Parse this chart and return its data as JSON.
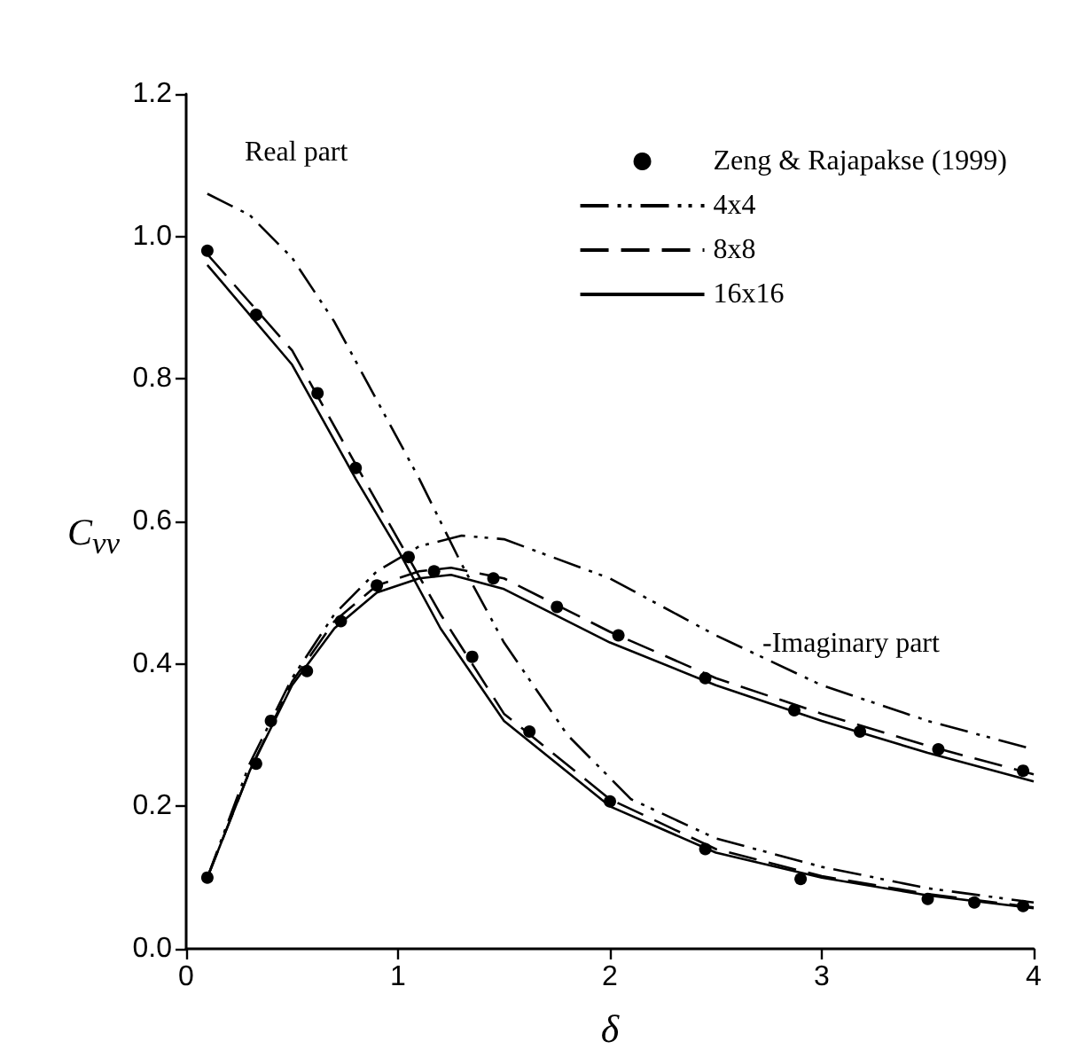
{
  "chart_data": {
    "type": "line",
    "xlabel": "δ",
    "ylabel": "C$_{vv}$",
    "xlim": [
      0,
      4
    ],
    "xticks": [
      0,
      1,
      2,
      3,
      4
    ],
    "ylim": [
      0,
      1.2
    ],
    "yticks": [
      {
        "value": 0,
        "label": "0.0"
      },
      {
        "value": 0.2,
        "label": "0.2"
      },
      {
        "value": 0.4,
        "label": "0.4"
      },
      {
        "value": 0.6,
        "label": "0.6"
      },
      {
        "value": 0.8,
        "label": "0.8"
      },
      {
        "value": 1,
        "label": "1.0"
      },
      {
        "value": 1.2,
        "label": "1.2"
      }
    ],
    "grid": false,
    "legend": "top right",
    "annotations": [
      "Real part",
      "-Imaginary part"
    ],
    "series": [
      {
        "name": "Zeng & Rajapakse (1999)",
        "type": "scatter",
        "marker": "circle",
        "color": "#000000",
        "x": [
          0.1,
          0.33,
          0.62,
          0.8,
          1.05,
          1.35,
          1.62,
          2.0,
          2.45,
          2.9,
          3.5,
          3.72,
          3.95,
          0.1,
          0.33,
          0.4,
          0.57,
          0.73,
          0.9,
          1.17,
          1.45,
          1.75,
          2.04,
          2.45,
          2.87,
          3.18,
          3.55,
          3.95
        ],
        "values": [
          0.98,
          0.89,
          0.78,
          0.675,
          0.55,
          0.41,
          0.305,
          0.207,
          0.14,
          0.098,
          0.07,
          0.065,
          0.06,
          0.1,
          0.26,
          0.32,
          0.39,
          0.46,
          0.51,
          0.53,
          0.52,
          0.48,
          0.44,
          0.38,
          0.335,
          0.305,
          0.28,
          0.25
        ]
      },
      {
        "name": "4x4",
        "type": "line",
        "line_style": "dotted",
        "color": "#000000",
        "x": [
          0.1,
          0.3,
          0.5,
          0.7,
          0.9,
          1.1,
          1.3,
          1.5,
          1.8,
          2.1,
          2.5,
          3,
          3.5,
          4,
          null,
          0.1,
          0.3,
          0.5,
          0.7,
          0.9,
          1.1,
          1.3,
          1.5,
          2,
          2.5,
          3,
          3.5,
          4
        ],
        "values": [
          1.06,
          1.03,
          0.97,
          0.88,
          0.77,
          0.66,
          0.54,
          0.43,
          0.3,
          0.21,
          0.155,
          0.115,
          0.085,
          0.065,
          null,
          0.1,
          0.26,
          0.38,
          0.47,
          0.53,
          0.565,
          0.58,
          0.575,
          0.52,
          0.44,
          0.37,
          0.32,
          0.28
        ]
      },
      {
        "name": "8x8",
        "type": "line",
        "line_style": "dashed",
        "color": "#000000",
        "x": [
          0.1,
          0.5,
          0.8,
          1.0,
          1.2,
          1.5,
          2,
          2.5,
          3,
          3.5,
          4,
          null,
          0.1,
          0.3,
          0.5,
          0.7,
          0.9,
          1.1,
          1.25,
          1.5,
          2,
          2.5,
          3,
          3.5,
          4
        ],
        "values": [
          0.975,
          0.84,
          0.68,
          0.575,
          0.47,
          0.33,
          0.21,
          0.14,
          0.102,
          0.077,
          0.058,
          null,
          0.1,
          0.25,
          0.375,
          0.46,
          0.51,
          0.53,
          0.535,
          0.52,
          0.445,
          0.38,
          0.33,
          0.285,
          0.245
        ]
      },
      {
        "name": "16x16",
        "type": "line",
        "line_style": "solid",
        "color": "#000000",
        "x": [
          0.1,
          0.5,
          0.8,
          1.0,
          1.2,
          1.5,
          2,
          2.5,
          3,
          3.5,
          4,
          null,
          0.1,
          0.3,
          0.5,
          0.7,
          0.9,
          1.1,
          1.25,
          1.5,
          2,
          2.5,
          3,
          3.5,
          4
        ],
        "values": [
          0.96,
          0.82,
          0.66,
          0.56,
          0.45,
          0.32,
          0.2,
          0.135,
          0.1,
          0.075,
          0.057,
          null,
          0.1,
          0.25,
          0.37,
          0.45,
          0.5,
          0.52,
          0.525,
          0.505,
          0.43,
          0.37,
          0.32,
          0.275,
          0.235
        ]
      }
    ]
  }
}
